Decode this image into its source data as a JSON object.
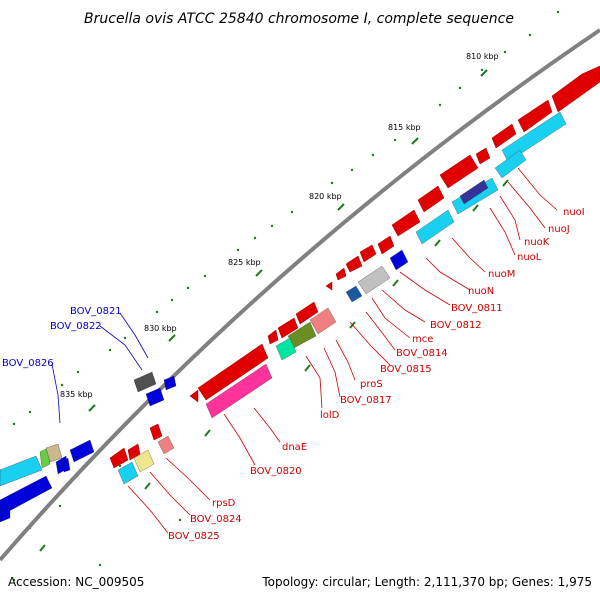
{
  "title": "Brucella ovis ATCC 25840 chromosome I, complete sequence",
  "footer": {
    "accession": "Accession: NC_009505",
    "topology": "Topology: circular; Length: 2,111,370 bp; Genes: 1,975"
  },
  "colors": {
    "backbone": "#808080",
    "tick": "#1a7a1a",
    "forward_gene": "#e00000",
    "label_red": "#cc0000",
    "label_blue": "#0000cc",
    "blue_gene": "#0000dd",
    "cyan_gene": "#19d0f0"
  },
  "kbp_ticks": [
    "810 kbp",
    "815 kbp",
    "820 kbp",
    "825 kbp",
    "830 kbp",
    "835 kbp"
  ],
  "gene_labels": [
    {
      "text": "nuoI",
      "color": "red"
    },
    {
      "text": "nuoJ",
      "color": "red"
    },
    {
      "text": "nuoK",
      "color": "red"
    },
    {
      "text": "nuoL",
      "color": "red"
    },
    {
      "text": "nuoM",
      "color": "red"
    },
    {
      "text": "nuoN",
      "color": "red"
    },
    {
      "text": "BOV_0811",
      "color": "red"
    },
    {
      "text": "BOV_0812",
      "color": "red"
    },
    {
      "text": "mce",
      "color": "red"
    },
    {
      "text": "BOV_0814",
      "color": "red"
    },
    {
      "text": "BOV_0815",
      "color": "red"
    },
    {
      "text": "proS",
      "color": "red"
    },
    {
      "text": "BOV_0817",
      "color": "red"
    },
    {
      "text": "lolD",
      "color": "red"
    },
    {
      "text": "dnaE",
      "color": "red"
    },
    {
      "text": "BOV_0820",
      "color": "red"
    },
    {
      "text": "rpsD",
      "color": "red"
    },
    {
      "text": "BOV_0824",
      "color": "red"
    },
    {
      "text": "BOV_0825",
      "color": "red"
    },
    {
      "text": "BOV_0821",
      "color": "blue"
    },
    {
      "text": "BOV_0822",
      "color": "blue"
    },
    {
      "text": "BOV_0826",
      "color": "blue"
    }
  ]
}
